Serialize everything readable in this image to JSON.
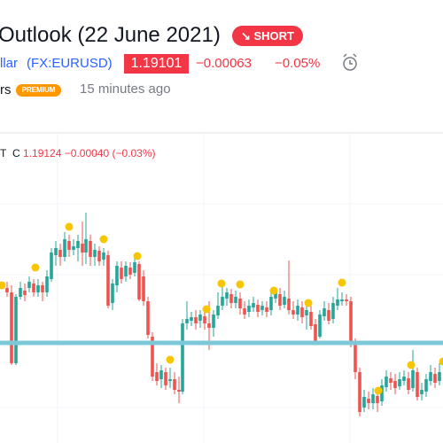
{
  "header": {
    "title": "Outlook (22 June 2021)",
    "signal": "SHORT",
    "symbol_name": "llar",
    "symbol": "(FX:EURUSD)",
    "price": "1.19101",
    "change": "−0.00063",
    "change_percent": "−0.05%",
    "author": "rs",
    "badge": "PREMIUM",
    "time": "15 minutes ago"
  },
  "chart": {
    "legend_marker": "T",
    "legend_label": "C",
    "legend_close": "1.19124",
    "legend_change": "−0.00040 (−0.03%)"
  }
}
